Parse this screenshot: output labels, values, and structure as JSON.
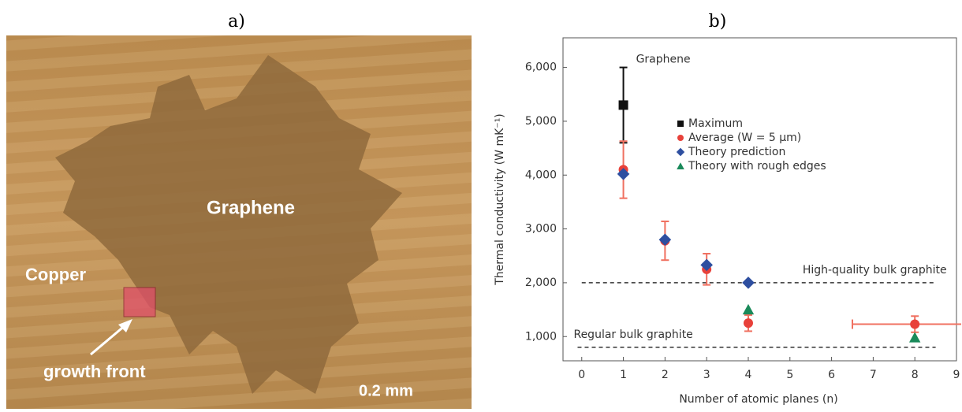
{
  "panel_a": {
    "label": "a)",
    "texts": [
      "Graphene",
      "Copper",
      "growth front",
      "0.2 mm"
    ]
  },
  "chart_data": {
    "type": "scatter",
    "panel_label": "b)",
    "xlabel": "Number of atomic planes (n)",
    "ylabel": "Thermal conductivity (W mK⁻¹)",
    "xlim": [
      -0.45,
      9
    ],
    "ylim": [
      550,
      6550
    ],
    "xticks": [
      0,
      1,
      2,
      3,
      4,
      5,
      6,
      7,
      8,
      9
    ],
    "yticks": [
      {
        "value": 1000,
        "label": "1,000"
      },
      {
        "value": 2000,
        "label": "2,000"
      },
      {
        "value": 3000,
        "label": "3,000"
      },
      {
        "value": 4000,
        "label": "4,000"
      },
      {
        "value": 5000,
        "label": "5,000"
      },
      {
        "value": 6000,
        "label": "6,000"
      }
    ],
    "annotation": "Graphene",
    "series": [
      {
        "name": "Maximum",
        "color": "#111111",
        "marker": "square",
        "x": [
          1
        ],
        "values": [
          5300
        ],
        "errors": [
          700
        ]
      },
      {
        "name": "Average (W = 5 μm)",
        "color": "#e8413a",
        "marker": "circle",
        "x": [
          1,
          2,
          3,
          4,
          8
        ],
        "values": [
          4100,
          2780,
          2250,
          1250,
          1230
        ],
        "errors": [
          530,
          360,
          290,
          150,
          150
        ],
        "x_errors": [
          null,
          null,
          null,
          null,
          1.5
        ]
      },
      {
        "name": "Theory prediction",
        "color": "#2e4fa0",
        "marker": "diamond",
        "x": [
          1,
          2,
          3,
          4
        ],
        "values": [
          4020,
          2800,
          2330,
          2000
        ]
      },
      {
        "name": "Theory with rough edges",
        "color": "#1a8a5a",
        "marker": "triangle",
        "x": [
          4,
          8
        ],
        "values": [
          1500,
          980
        ]
      }
    ],
    "reference_lines": [
      {
        "label": "High-quality bulk graphite",
        "value": 2000,
        "x": [
          0,
          8.5
        ]
      },
      {
        "label": "Regular bulk graphite",
        "value": 800,
        "x": [
          -0.1,
          8.5
        ]
      }
    ]
  }
}
